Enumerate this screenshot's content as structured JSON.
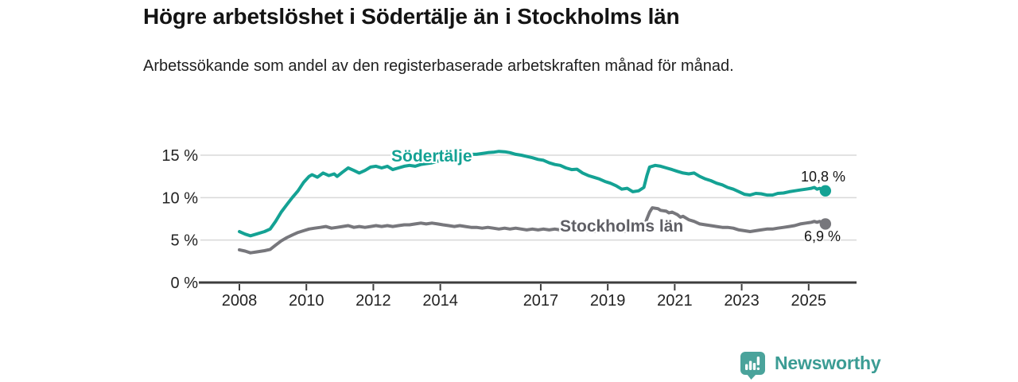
{
  "header": {
    "title": "Högre arbetslöshet i Södertälje än i Stockholms län",
    "subtitle": "Arbetssökande som andel av den registerbaserade arbetskraften månad för månad."
  },
  "footer": {
    "brand": "Newsworthy"
  },
  "colors": {
    "sodertalje": "#14a294",
    "stockholm": "#77777c",
    "stockholm_label": "#5f5f65",
    "axis": "#3d3d3d",
    "grid": "#d8d8d8",
    "tick_text": "#232323",
    "logo": "#4aa39b",
    "logo_text": "#3b9c94"
  },
  "chart_data": {
    "type": "line",
    "title": "Högre arbetslöshet i Södertälje än i Stockholms län",
    "subtitle": "Arbetssökande som andel av den registerbaserade arbetskraften månad för månad.",
    "xlabel": "",
    "ylabel": "",
    "ylim": [
      0,
      15.6
    ],
    "xlim": [
      2007.8,
      2026.4
    ],
    "grid": "horizontal",
    "legend_position": "inline-labels",
    "yticks": [
      {
        "v": 0,
        "label": "0 %"
      },
      {
        "v": 5,
        "label": "5 %"
      },
      {
        "v": 10,
        "label": "10 %"
      },
      {
        "v": 15,
        "label": "15 %"
      }
    ],
    "xticks": [
      {
        "v": 2008,
        "label": "2008"
      },
      {
        "v": 2010,
        "label": "2010"
      },
      {
        "v": 2012,
        "label": "2012"
      },
      {
        "v": 2014,
        "label": "2014"
      },
      {
        "v": 2017,
        "label": "2017"
      },
      {
        "v": 2019,
        "label": "2019"
      },
      {
        "v": 2021,
        "label": "2021"
      },
      {
        "v": 2023,
        "label": "2023"
      },
      {
        "v": 2025,
        "label": "2025"
      }
    ],
    "series": [
      {
        "id": "sodertalje",
        "name": "Södertälje",
        "color": "#14a294",
        "end_label": "10,8 %",
        "end_value": 10.8,
        "points": [
          [
            2008.0,
            6.0
          ],
          [
            2008.17,
            5.7
          ],
          [
            2008.33,
            5.5
          ],
          [
            2008.5,
            5.7
          ],
          [
            2008.75,
            6.0
          ],
          [
            2008.92,
            6.3
          ],
          [
            2009.08,
            7.2
          ],
          [
            2009.25,
            8.3
          ],
          [
            2009.42,
            9.2
          ],
          [
            2009.58,
            10.0
          ],
          [
            2009.75,
            10.8
          ],
          [
            2009.92,
            11.8
          ],
          [
            2010.08,
            12.5
          ],
          [
            2010.17,
            12.7
          ],
          [
            2010.33,
            12.4
          ],
          [
            2010.5,
            12.9
          ],
          [
            2010.67,
            12.6
          ],
          [
            2010.83,
            12.8
          ],
          [
            2010.92,
            12.5
          ],
          [
            2011.08,
            13.0
          ],
          [
            2011.25,
            13.5
          ],
          [
            2011.42,
            13.2
          ],
          [
            2011.58,
            12.9
          ],
          [
            2011.75,
            13.2
          ],
          [
            2011.92,
            13.6
          ],
          [
            2012.08,
            13.7
          ],
          [
            2012.25,
            13.5
          ],
          [
            2012.42,
            13.7
          ],
          [
            2012.58,
            13.3
          ],
          [
            2012.75,
            13.5
          ],
          [
            2012.92,
            13.7
          ],
          [
            2013.08,
            13.8
          ],
          [
            2013.25,
            13.7
          ],
          [
            2013.42,
            13.9
          ],
          [
            2013.58,
            14.0
          ],
          [
            2013.75,
            14.1
          ],
          [
            2013.92,
            14.3
          ],
          [
            2014.08,
            14.4
          ],
          [
            2014.25,
            14.5
          ],
          [
            2014.42,
            14.7
          ],
          [
            2014.58,
            14.8
          ],
          [
            2014.75,
            15.0
          ],
          [
            2014.92,
            15.1
          ],
          [
            2015.08,
            15.1
          ],
          [
            2015.25,
            15.2
          ],
          [
            2015.42,
            15.3
          ],
          [
            2015.58,
            15.35
          ],
          [
            2015.75,
            15.45
          ],
          [
            2015.92,
            15.4
          ],
          [
            2016.08,
            15.3
          ],
          [
            2016.25,
            15.1
          ],
          [
            2016.42,
            15.0
          ],
          [
            2016.58,
            14.85
          ],
          [
            2016.75,
            14.7
          ],
          [
            2016.92,
            14.5
          ],
          [
            2017.08,
            14.4
          ],
          [
            2017.25,
            14.1
          ],
          [
            2017.42,
            13.9
          ],
          [
            2017.58,
            13.8
          ],
          [
            2017.75,
            13.5
          ],
          [
            2017.92,
            13.3
          ],
          [
            2018.08,
            13.35
          ],
          [
            2018.25,
            12.9
          ],
          [
            2018.42,
            12.6
          ],
          [
            2018.58,
            12.4
          ],
          [
            2018.75,
            12.2
          ],
          [
            2018.92,
            11.9
          ],
          [
            2019.08,
            11.7
          ],
          [
            2019.25,
            11.4
          ],
          [
            2019.42,
            11.0
          ],
          [
            2019.58,
            11.1
          ],
          [
            2019.75,
            10.7
          ],
          [
            2019.92,
            10.8
          ],
          [
            2020.08,
            11.2
          ],
          [
            2020.17,
            12.6
          ],
          [
            2020.25,
            13.6
          ],
          [
            2020.42,
            13.8
          ],
          [
            2020.58,
            13.7
          ],
          [
            2020.75,
            13.5
          ],
          [
            2020.92,
            13.3
          ],
          [
            2021.08,
            13.1
          ],
          [
            2021.25,
            12.9
          ],
          [
            2021.42,
            12.8
          ],
          [
            2021.58,
            12.9
          ],
          [
            2021.75,
            12.5
          ],
          [
            2021.92,
            12.2
          ],
          [
            2022.08,
            12.0
          ],
          [
            2022.25,
            11.7
          ],
          [
            2022.42,
            11.5
          ],
          [
            2022.58,
            11.2
          ],
          [
            2022.75,
            11.0
          ],
          [
            2022.92,
            10.7
          ],
          [
            2023.08,
            10.4
          ],
          [
            2023.25,
            10.3
          ],
          [
            2023.42,
            10.5
          ],
          [
            2023.58,
            10.45
          ],
          [
            2023.75,
            10.3
          ],
          [
            2023.92,
            10.3
          ],
          [
            2024.08,
            10.5
          ],
          [
            2024.25,
            10.55
          ],
          [
            2024.42,
            10.7
          ],
          [
            2024.58,
            10.8
          ],
          [
            2024.75,
            10.9
          ],
          [
            2024.92,
            11.0
          ],
          [
            2025.08,
            11.1
          ],
          [
            2025.17,
            11.2
          ],
          [
            2025.25,
            11.0
          ],
          [
            2025.33,
            11.1
          ],
          [
            2025.42,
            10.9
          ],
          [
            2025.5,
            10.8
          ]
        ]
      },
      {
        "id": "stockholms-lan",
        "name": "Stockholms län",
        "color": "#77777c",
        "end_label": "6,9 %",
        "end_value": 6.9,
        "points": [
          [
            2008.0,
            3.85
          ],
          [
            2008.17,
            3.7
          ],
          [
            2008.33,
            3.5
          ],
          [
            2008.5,
            3.6
          ],
          [
            2008.75,
            3.75
          ],
          [
            2008.92,
            3.9
          ],
          [
            2009.08,
            4.4
          ],
          [
            2009.25,
            4.9
          ],
          [
            2009.42,
            5.3
          ],
          [
            2009.58,
            5.6
          ],
          [
            2009.75,
            5.9
          ],
          [
            2009.92,
            6.1
          ],
          [
            2010.08,
            6.3
          ],
          [
            2010.25,
            6.4
          ],
          [
            2010.42,
            6.5
          ],
          [
            2010.58,
            6.6
          ],
          [
            2010.75,
            6.4
          ],
          [
            2010.92,
            6.5
          ],
          [
            2011.08,
            6.6
          ],
          [
            2011.25,
            6.7
          ],
          [
            2011.42,
            6.5
          ],
          [
            2011.58,
            6.6
          ],
          [
            2011.75,
            6.5
          ],
          [
            2011.92,
            6.6
          ],
          [
            2012.08,
            6.7
          ],
          [
            2012.25,
            6.6
          ],
          [
            2012.42,
            6.7
          ],
          [
            2012.58,
            6.6
          ],
          [
            2012.75,
            6.7
          ],
          [
            2012.92,
            6.8
          ],
          [
            2013.08,
            6.8
          ],
          [
            2013.25,
            6.9
          ],
          [
            2013.42,
            7.0
          ],
          [
            2013.58,
            6.9
          ],
          [
            2013.75,
            7.0
          ],
          [
            2013.92,
            6.9
          ],
          [
            2014.08,
            6.8
          ],
          [
            2014.25,
            6.7
          ],
          [
            2014.42,
            6.6
          ],
          [
            2014.58,
            6.7
          ],
          [
            2014.75,
            6.6
          ],
          [
            2014.92,
            6.5
          ],
          [
            2015.08,
            6.5
          ],
          [
            2015.25,
            6.4
          ],
          [
            2015.42,
            6.5
          ],
          [
            2015.58,
            6.4
          ],
          [
            2015.75,
            6.3
          ],
          [
            2015.92,
            6.4
          ],
          [
            2016.08,
            6.3
          ],
          [
            2016.25,
            6.4
          ],
          [
            2016.42,
            6.3
          ],
          [
            2016.58,
            6.2
          ],
          [
            2016.75,
            6.3
          ],
          [
            2016.92,
            6.2
          ],
          [
            2017.08,
            6.3
          ],
          [
            2017.25,
            6.2
          ],
          [
            2017.42,
            6.3
          ],
          [
            2017.58,
            6.2
          ],
          [
            2017.75,
            6.1
          ],
          [
            2017.92,
            6.2
          ],
          [
            2018.08,
            6.1
          ],
          [
            2018.25,
            6.2
          ],
          [
            2018.42,
            6.1
          ],
          [
            2018.58,
            6.0
          ],
          [
            2018.75,
            6.1
          ],
          [
            2018.92,
            6.0
          ],
          [
            2019.08,
            6.1
          ],
          [
            2019.25,
            6.2
          ],
          [
            2019.42,
            6.1
          ],
          [
            2019.58,
            6.0
          ],
          [
            2019.75,
            6.1
          ],
          [
            2019.92,
            6.2
          ],
          [
            2020.08,
            6.5
          ],
          [
            2020.17,
            7.5
          ],
          [
            2020.25,
            8.3
          ],
          [
            2020.33,
            8.8
          ],
          [
            2020.5,
            8.7
          ],
          [
            2020.58,
            8.5
          ],
          [
            2020.75,
            8.4
          ],
          [
            2020.83,
            8.2
          ],
          [
            2020.92,
            8.3
          ],
          [
            2021.08,
            8.0
          ],
          [
            2021.17,
            7.7
          ],
          [
            2021.25,
            7.8
          ],
          [
            2021.42,
            7.4
          ],
          [
            2021.58,
            7.2
          ],
          [
            2021.75,
            6.9
          ],
          [
            2021.92,
            6.8
          ],
          [
            2022.08,
            6.7
          ],
          [
            2022.25,
            6.6
          ],
          [
            2022.42,
            6.5
          ],
          [
            2022.58,
            6.5
          ],
          [
            2022.75,
            6.4
          ],
          [
            2022.92,
            6.2
          ],
          [
            2023.08,
            6.1
          ],
          [
            2023.25,
            6.0
          ],
          [
            2023.42,
            6.1
          ],
          [
            2023.58,
            6.2
          ],
          [
            2023.75,
            6.3
          ],
          [
            2023.92,
            6.3
          ],
          [
            2024.08,
            6.4
          ],
          [
            2024.25,
            6.5
          ],
          [
            2024.42,
            6.6
          ],
          [
            2024.58,
            6.7
          ],
          [
            2024.75,
            6.9
          ],
          [
            2024.92,
            7.0
          ],
          [
            2025.08,
            7.1
          ],
          [
            2025.17,
            7.2
          ],
          [
            2025.25,
            7.1
          ],
          [
            2025.33,
            7.2
          ],
          [
            2025.42,
            7.0
          ],
          [
            2025.5,
            6.9
          ]
        ]
      }
    ]
  }
}
